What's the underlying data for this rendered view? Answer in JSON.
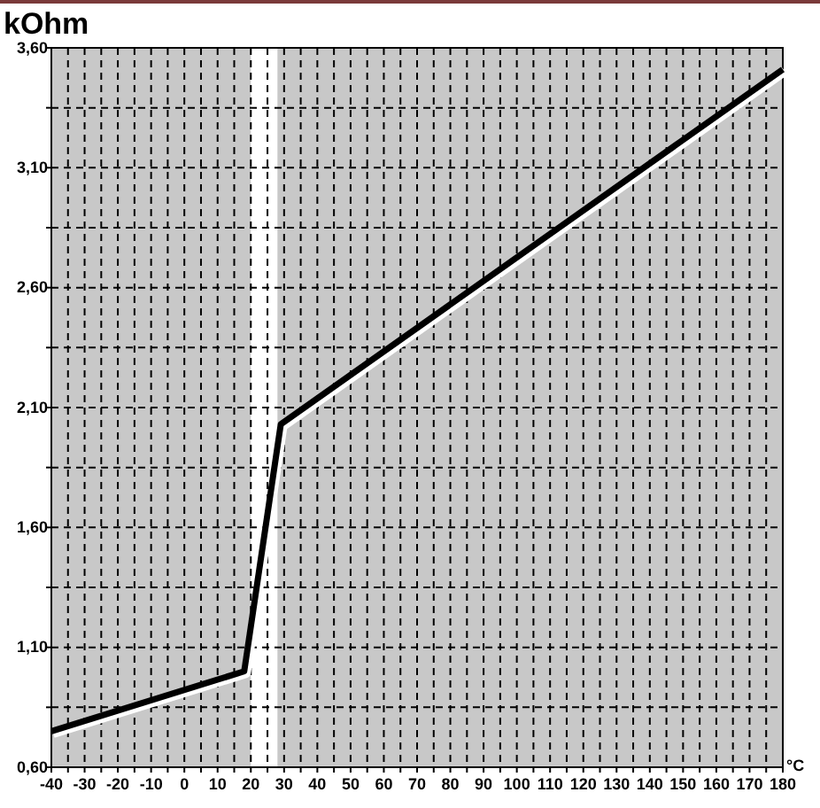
{
  "chart_data": {
    "type": "line",
    "ylabel": "kOhm",
    "xlabel": "°C",
    "x": [
      -40,
      18,
      29,
      180
    ],
    "series": [
      {
        "color": "#000000",
        "values": [
          0.75,
          1.0,
          2.03,
          3.51
        ]
      }
    ],
    "xlim": [
      -40,
      180
    ],
    "xticks": [
      -40,
      {
        "value": -35,
        "label": null
      },
      -30,
      {
        "value": -25,
        "label": null
      },
      -20,
      {
        "value": -15,
        "label": null
      },
      -10,
      {
        "value": -5,
        "label": null
      },
      0,
      {
        "value": 5,
        "label": null
      },
      10,
      {
        "value": 15,
        "label": null
      },
      20,
      {
        "value": 25,
        "label": null
      },
      30,
      {
        "value": 35,
        "label": null
      },
      40,
      {
        "value": 45,
        "label": null
      },
      50,
      {
        "value": 55,
        "label": null
      },
      60,
      {
        "value": 65,
        "label": null
      },
      70,
      {
        "value": 75,
        "label": null
      },
      80,
      {
        "value": 85,
        "label": null
      },
      90,
      {
        "value": 95,
        "label": null
      },
      100,
      {
        "value": 105,
        "label": null
      },
      110,
      {
        "value": 115,
        "label": null
      },
      120,
      {
        "value": 125,
        "label": null
      },
      130,
      {
        "value": 135,
        "label": null
      },
      140,
      {
        "value": 145,
        "label": null
      },
      150,
      {
        "value": 155,
        "label": null
      },
      160,
      {
        "value": 165,
        "label": null
      },
      170,
      {
        "value": 175,
        "label": null
      },
      180
    ],
    "ylim": [
      0.6,
      3.6
    ],
    "yticks": [
      {
        "value": 0.6,
        "label": "0,60"
      },
      {
        "value": 0.85,
        "label": null
      },
      {
        "value": 1.1,
        "label": "1,10"
      },
      {
        "value": 1.35,
        "label": null
      },
      {
        "value": 1.6,
        "label": "1,60"
      },
      {
        "value": 1.85,
        "label": null
      },
      {
        "value": 2.1,
        "label": "2,10"
      },
      {
        "value": 2.35,
        "label": null
      },
      {
        "value": 2.6,
        "label": "2,60"
      },
      {
        "value": 2.85,
        "label": null
      },
      {
        "value": 3.1,
        "label": "3,10"
      },
      {
        "value": 3.35,
        "label": null
      },
      {
        "value": 3.6,
        "label": "3,60"
      }
    ],
    "bands": [
      {
        "axis": "x",
        "from": 20,
        "to": 28,
        "color": "#ffffff"
      }
    ],
    "grid": true,
    "line_style": "solid",
    "marker": "none"
  }
}
